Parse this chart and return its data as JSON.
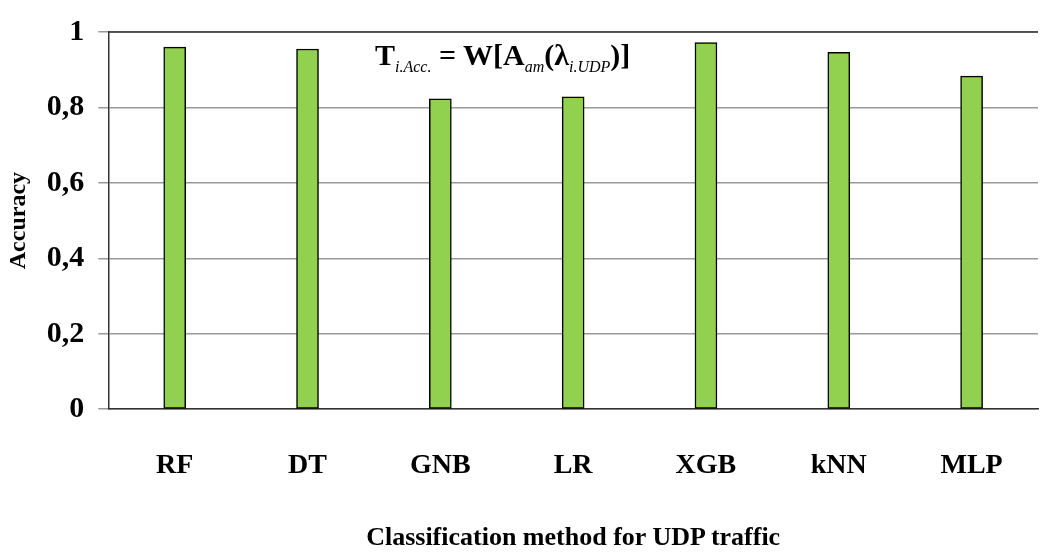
{
  "chart_data": {
    "type": "bar",
    "xlabel": "Classification method for UDP traffic",
    "ylabel": "Accuracy",
    "categories": [
      "RF",
      "DT",
      "GNB",
      "LR",
      "XGB",
      "kNN",
      "MLP"
    ],
    "values": [
      0.96,
      0.955,
      0.823,
      0.828,
      0.972,
      0.946,
      0.883
    ],
    "color": "#92d050",
    "ylim": [
      0,
      1
    ],
    "yticks": [
      0,
      {
        "value": 0.2,
        "label": "0,2"
      },
      {
        "value": 0.4,
        "label": "0,4"
      },
      {
        "value": 0.6,
        "label": "0,6"
      },
      {
        "value": 0.8,
        "label": "0,8"
      },
      1
    ],
    "grid": "y",
    "annotations": [
      "T$_{i.Acc.}$ = W[A$_{am}$(λ$_{i.UDP}$)]"
    ]
  }
}
